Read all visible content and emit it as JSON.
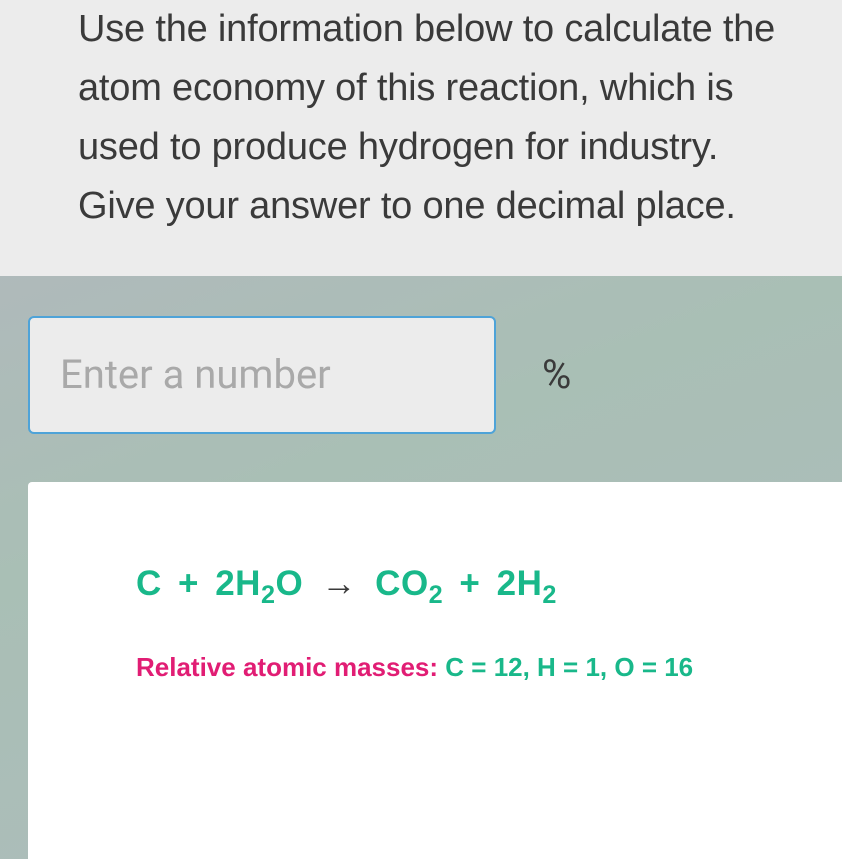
{
  "colors": {
    "background_gradient_start": "#b5b5c0",
    "background_gradient_mid": "#a9bfb5",
    "background_gradient_end": "#aebbbd",
    "card_bg": "#ececec",
    "info_card_bg": "#ffffff",
    "question_text": "#3a3a3a",
    "input_border": "#4ea3d8",
    "placeholder": "#a9a9a9",
    "teal": "#19b88a",
    "arrow": "#3a3a3a",
    "pink": "#e11d74"
  },
  "question": {
    "text": "Use the information below to calculate the atom economy of this reaction, which is used to produce hydrogen for industry. Give your answer to one decimal place.",
    "fontsize": 38
  },
  "answer": {
    "placeholder": "Enter a number",
    "value": "",
    "unit": "%",
    "fontsize": 40
  },
  "equation": {
    "fontsize": 35,
    "terms": {
      "r1": "C",
      "r2_coef": "2",
      "r2_base": "H",
      "r2_sub": "2",
      "r2_tail": "O",
      "p1_base": "CO",
      "p1_sub": "2",
      "p2_coef": "2",
      "p2_base": "H",
      "p2_sub": "2"
    },
    "plus": "+",
    "arrow": "→"
  },
  "masses": {
    "label": "Relative atomic masses: ",
    "values": "C = 12, H = 1, O = 16",
    "fontsize": 26
  }
}
